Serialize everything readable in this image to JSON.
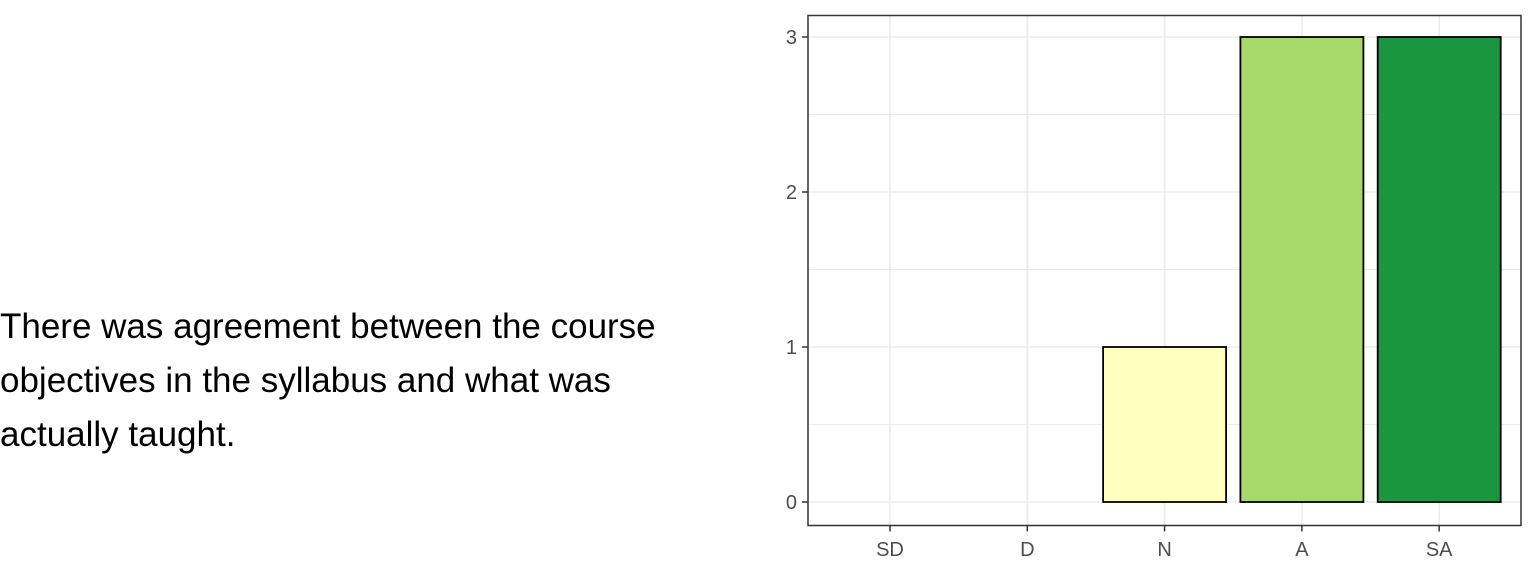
{
  "question": "There was agreement between the course objectives in the syllabus and what was actually taught.",
  "chart_data": {
    "type": "bar",
    "categories": [
      "SD",
      "D",
      "N",
      "A",
      "SA"
    ],
    "values": [
      0,
      0,
      1,
      3,
      3
    ],
    "title": "",
    "xlabel": "",
    "ylabel": "",
    "ylim": [
      0,
      3
    ],
    "yticks": [
      0,
      1,
      2,
      3
    ],
    "grid": true,
    "colors": [
      "#d7191c",
      "#fdae61",
      "#ffffbf",
      "#a6d96a",
      "#1a9641"
    ],
    "panel_border_color": "#333333",
    "grid_color": "#ebebeb",
    "bar_edge_color": "#000000"
  }
}
